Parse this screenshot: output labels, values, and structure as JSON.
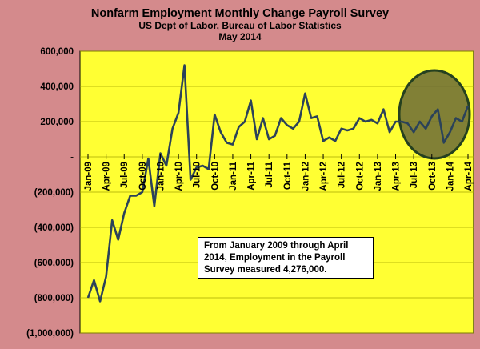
{
  "chart_data": {
    "type": "line",
    "title": "Nonfarm Employment Monthly Change Payroll Survey",
    "subtitle_lines": [
      "US Dept of Labor, Bureau of Labor Statistics",
      "May 2014"
    ],
    "ylim": [
      -1000000,
      600000
    ],
    "y_ticks": [
      {
        "value": 600000,
        "label": "600,000"
      },
      {
        "value": 400000,
        "label": "400,000"
      },
      {
        "value": 200000,
        "label": "200,000"
      },
      {
        "value": 0,
        "label": "-"
      },
      {
        "value": -200000,
        "label": "(200,000)"
      },
      {
        "value": -400000,
        "label": "(400,000)"
      },
      {
        "value": -600000,
        "label": "(600,000)"
      },
      {
        "value": -800000,
        "label": "(800,000)"
      },
      {
        "value": -1000000,
        "label": "(1,000,000)"
      }
    ],
    "x_ticks": [
      {
        "index": 0,
        "label": "Jan-09"
      },
      {
        "index": 3,
        "label": "Apr-09"
      },
      {
        "index": 6,
        "label": "Jul-09"
      },
      {
        "index": 9,
        "label": "Oct-09"
      },
      {
        "index": 12,
        "label": "Jan-10"
      },
      {
        "index": 15,
        "label": "Apr-10"
      },
      {
        "index": 18,
        "label": "Jul-10"
      },
      {
        "index": 21,
        "label": "Oct-10"
      },
      {
        "index": 24,
        "label": "Jan-11"
      },
      {
        "index": 27,
        "label": "Apr-11"
      },
      {
        "index": 30,
        "label": "Jul-11"
      },
      {
        "index": 33,
        "label": "Oct-11"
      },
      {
        "index": 36,
        "label": "Jan-12"
      },
      {
        "index": 39,
        "label": "Apr-12"
      },
      {
        "index": 42,
        "label": "Jul-12"
      },
      {
        "index": 45,
        "label": "Oct-12"
      },
      {
        "index": 48,
        "label": "Jan-13"
      },
      {
        "index": 51,
        "label": "Apr-13"
      },
      {
        "index": 54,
        "label": "Jul-13"
      },
      {
        "index": 57,
        "label": "Oct-13"
      },
      {
        "index": 60,
        "label": "Jan-14"
      },
      {
        "index": 63,
        "label": "Apr-14"
      }
    ],
    "x_range": [
      0,
      63
    ],
    "values": [
      -800000,
      -700000,
      -820000,
      -680000,
      -360000,
      -470000,
      -320000,
      -220000,
      -220000,
      -200000,
      -10000,
      -280000,
      20000,
      -50000,
      160000,
      250000,
      520000,
      -130000,
      -60000,
      -50000,
      -70000,
      240000,
      140000,
      80000,
      70000,
      170000,
      200000,
      320000,
      100000,
      220000,
      100000,
      120000,
      220000,
      180000,
      160000,
      200000,
      360000,
      220000,
      230000,
      90000,
      110000,
      90000,
      160000,
      150000,
      160000,
      220000,
      200000,
      210000,
      190000,
      270000,
      140000,
      200000,
      200000,
      190000,
      140000,
      200000,
      160000,
      230000,
      270000,
      80000,
      140000,
      220000,
      200000,
      290000
    ],
    "grid": "horizontal",
    "legend": "none",
    "colors": {
      "page_bg": "#d48a8c",
      "plot_bg": "#ffff33",
      "line": "#2b4259",
      "circle_fill": "#6b6a37",
      "circle_stroke": "#25401f"
    },
    "annotation": [
      "From January  2009 through April",
      "2014, Employment in the  Payroll",
      "Survey measured 4,276,000."
    ]
  }
}
